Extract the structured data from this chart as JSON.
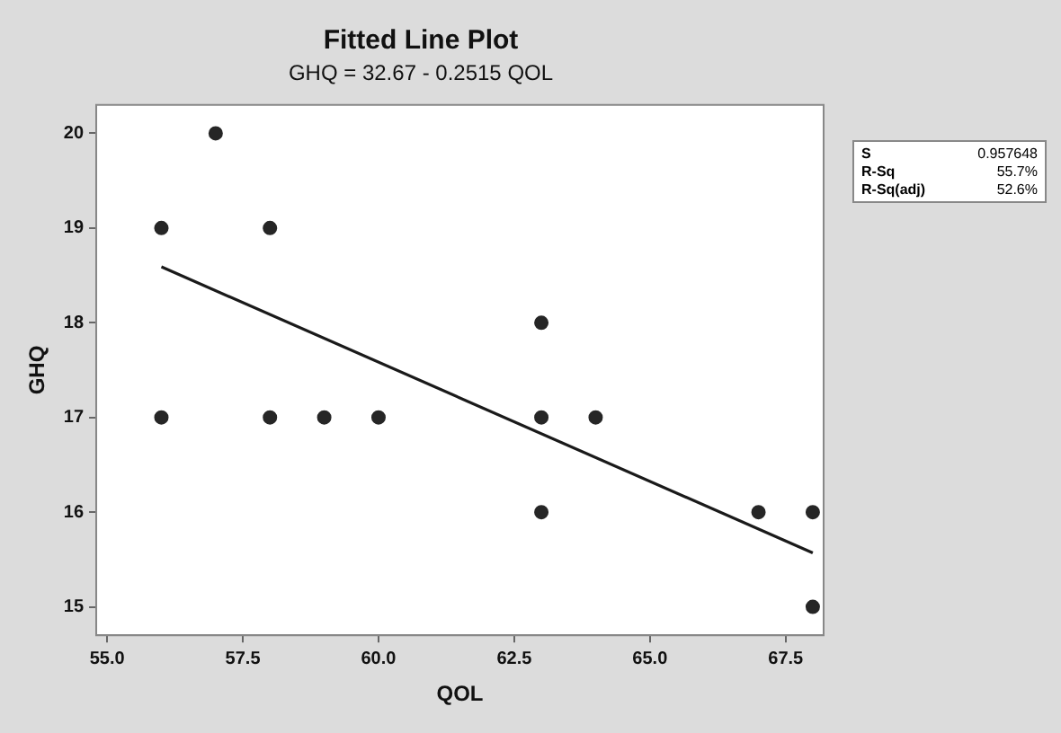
{
  "chart_data": {
    "type": "scatter",
    "title": "Fitted Line Plot",
    "subtitle": "GHQ = 32.67 - 0.2515 QOL",
    "xlabel": "QOL",
    "ylabel": "GHQ",
    "series": [
      {
        "color": "#262626",
        "marker": "circle",
        "x": [
          56,
          56,
          57,
          58,
          58,
          59,
          60,
          63,
          63,
          63,
          64,
          67,
          68,
          68
        ],
        "values": [
          19,
          17,
          20,
          19,
          17,
          17,
          17,
          18,
          17,
          16,
          17,
          16,
          16,
          15
        ]
      },
      {
        "type": "line",
        "color": "#1a1a1a",
        "marker": "none",
        "line_style": "solid",
        "x": [
          56,
          68
        ],
        "values": [
          18.59,
          15.57
        ]
      }
    ],
    "xlim": [
      54.8,
      68.2
    ],
    "xticks": [
      {
        "value": 55,
        "label": "55.0"
      },
      {
        "value": 57.5,
        "label": "57.5"
      },
      {
        "value": 60,
        "label": "60.0"
      },
      {
        "value": 62.5,
        "label": "62.5"
      },
      {
        "value": 65,
        "label": "65.0"
      },
      {
        "value": 67.5,
        "label": "67.5"
      }
    ],
    "ylim": [
      14.7,
      20.3
    ],
    "yticks": [
      15,
      16,
      17,
      18,
      19,
      20
    ],
    "grid": false,
    "legend": false,
    "annotations": [
      "S",
      "0.957648",
      "R-Sq",
      "55.7%",
      "R-Sq(adj)",
      "52.6%"
    ]
  }
}
